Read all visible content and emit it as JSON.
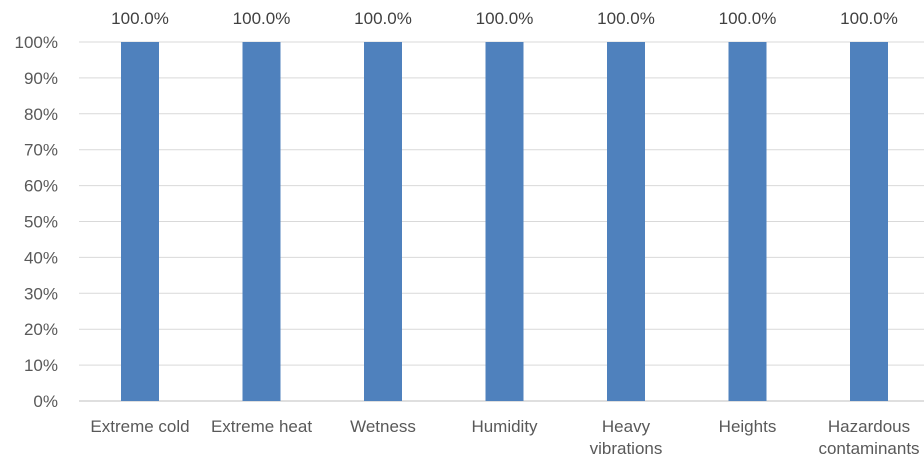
{
  "chart_data": {
    "type": "bar",
    "categories": [
      [
        "Extreme cold"
      ],
      [
        "Extreme heat"
      ],
      [
        "Wetness"
      ],
      [
        "Humidity"
      ],
      [
        "Heavy",
        "vibrations"
      ],
      [
        "Heights"
      ],
      [
        "Hazardous",
        "contaminants"
      ]
    ],
    "values": [
      100.0,
      100.0,
      100.0,
      100.0,
      100.0,
      100.0,
      100.0
    ],
    "data_labels": [
      "100.0%",
      "100.0%",
      "100.0%",
      "100.0%",
      "100.0%",
      "100.0%",
      "100.0%"
    ],
    "y_ticks": [
      "0%",
      "10%",
      "20%",
      "30%",
      "40%",
      "50%",
      "60%",
      "70%",
      "80%",
      "90%",
      "100%"
    ],
    "ylim": [
      0,
      100
    ],
    "grid": true,
    "legend": "none",
    "bar_color": "#4f81bd",
    "title": "",
    "xlabel": "",
    "ylabel": ""
  }
}
